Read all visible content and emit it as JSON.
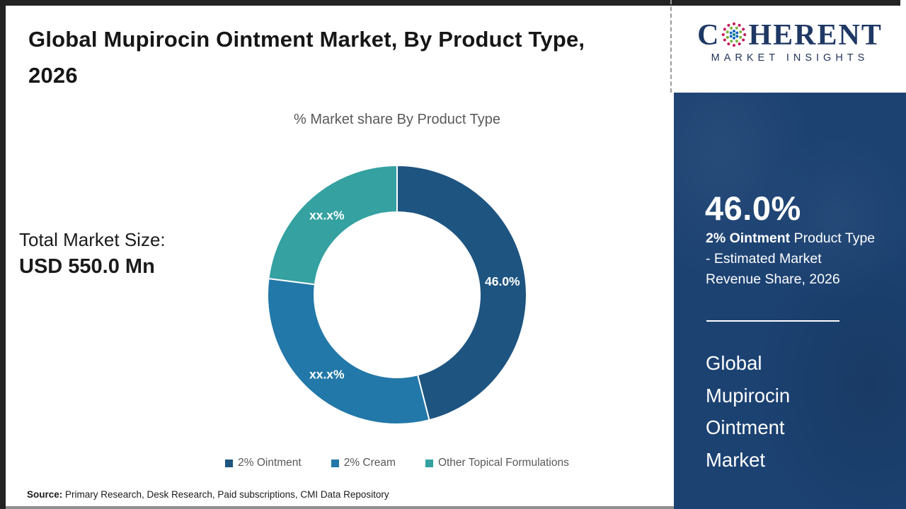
{
  "header": {
    "title": "Global Mupirocin Ointment Market, By Product Type, 2026"
  },
  "logo": {
    "brand_prefix": "C",
    "brand_suffix": "HERENT",
    "subtitle": "MARKET INSIGHTS",
    "brand_color": "#1f3864",
    "globe_dot_colors": {
      "outer": "#c2185b",
      "mid": "#7cb342",
      "inner": "#1565c0",
      "center": "#00897b"
    }
  },
  "market_size": {
    "label": "Total Market Size:",
    "value": "USD 550.0 Mn"
  },
  "chart_data": {
    "type": "donut",
    "title": "% Market share By Product Type",
    "categories": [
      "2% Ointment",
      "2% Cream",
      "Other Topical Formulations"
    ],
    "values": [
      46.0,
      31.0,
      23.0
    ],
    "display_labels": [
      "46.0%",
      "xx.x%",
      "xx.x%"
    ],
    "colors": [
      "#1e5480",
      "#2278a8",
      "#35a1a1"
    ],
    "start_angle_deg": 0,
    "direction": "clockwise",
    "inner_radius_ratio": 0.64,
    "legend_position": "bottom",
    "label_color": "#ffffff"
  },
  "sidebar": {
    "background_color": "#1c4272",
    "stat_value": "46.0%",
    "stat_bold": "2% Ointment",
    "stat_rest": " Product Type - Estimated Market Revenue Share, 2026",
    "market_name_lines": [
      "Global",
      "Mupirocin",
      "Ointment",
      "Market"
    ]
  },
  "source": {
    "label": "Source:",
    "text": " Primary Research, Desk Research, Paid subscriptions, CMI Data Repository"
  }
}
